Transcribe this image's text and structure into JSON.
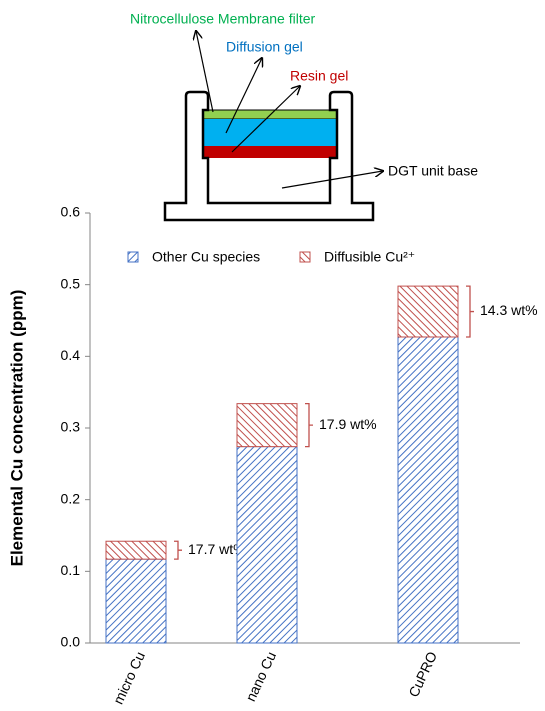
{
  "diagram": {
    "labels": [
      "Nitrocellulose Membrane filter",
      "Diffusion gel",
      "Resin gel",
      "DGT unit base"
    ]
  },
  "chart_data": {
    "type": "stacked-bar",
    "ylabel": "Elemental Cu concentration (ppm)",
    "categories": [
      "micro Cu",
      "nano Cu",
      "CuPRO"
    ],
    "series": [
      {
        "name": "Other Cu species",
        "color": "#4472c4",
        "values": [
          0.117,
          0.274,
          0.427
        ]
      },
      {
        "name": "Diffusible Cu²⁺",
        "color": "#c0504d",
        "values": [
          0.025,
          0.06,
          0.071
        ]
      }
    ],
    "annotations": [
      "17.7 wt%",
      "17.9 wt%",
      "14.3 wt%"
    ],
    "ylim": [
      0,
      0.6
    ],
    "yticks": [
      {
        "value": 0,
        "label": "0.0"
      },
      0.1,
      0.2,
      0.3,
      0.4,
      0.5,
      0.6
    ],
    "legend": "top"
  }
}
